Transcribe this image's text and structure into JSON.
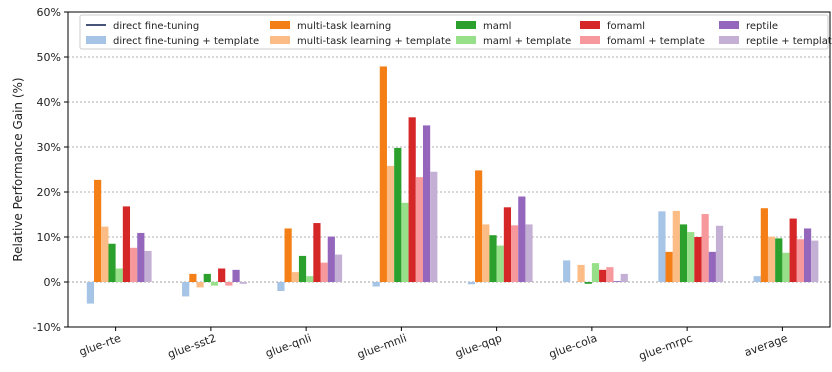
{
  "chart_data": {
    "type": "bar",
    "ylabel": "Relative Performance Gain (%)",
    "xlabel": "",
    "ylim": [
      -10,
      60
    ],
    "yticks": [
      -10,
      0,
      10,
      20,
      30,
      40,
      50,
      60
    ],
    "ytick_labels": [
      "-10%",
      "0%",
      "10%",
      "20%",
      "30%",
      "40%",
      "50%",
      "60%"
    ],
    "grid": "horizontal dashed",
    "legend_position": "top",
    "categories": [
      "glue-rte",
      "glue-sst2",
      "glue-qnli",
      "glue-mnli",
      "glue-qqp",
      "glue-cola",
      "glue-mrpc",
      "average"
    ],
    "series": [
      {
        "name": "direct fine-tuning",
        "color": "#0b1a4e",
        "values": [
          0,
          0,
          0,
          0,
          0,
          0,
          0,
          0
        ]
      },
      {
        "name": "direct fine-tuning + template",
        "color": "#a6c4e6",
        "values": [
          -4.8,
          -3.2,
          -2.0,
          -1.0,
          -0.5,
          4.8,
          15.7,
          1.3
        ]
      },
      {
        "name": "multi-task learning",
        "color": "#f57f17",
        "values": [
          22.7,
          1.8,
          11.9,
          47.9,
          24.8,
          0,
          6.7,
          16.4
        ]
      },
      {
        "name": "multi-task learning + template",
        "color": "#fbbd85",
        "values": [
          12.3,
          -1.2,
          2.2,
          25.8,
          12.8,
          3.8,
          15.8,
          10.1
        ]
      },
      {
        "name": "maml",
        "color": "#2ca02c",
        "values": [
          8.5,
          1.8,
          5.8,
          29.8,
          10.4,
          -0.4,
          12.8,
          9.7
        ]
      },
      {
        "name": "maml + template",
        "color": "#98df8a",
        "values": [
          3.0,
          -0.8,
          1.3,
          17.6,
          8.1,
          4.2,
          11.1,
          6.5
        ]
      },
      {
        "name": "fomaml",
        "color": "#d62728",
        "values": [
          16.8,
          3.0,
          13.1,
          36.6,
          16.6,
          2.7,
          10.0,
          14.1
        ]
      },
      {
        "name": "fomaml + template",
        "color": "#f7999c",
        "values": [
          7.6,
          -0.8,
          4.3,
          23.3,
          12.6,
          3.3,
          15.1,
          9.5
        ]
      },
      {
        "name": "reptile",
        "color": "#9467bd",
        "values": [
          10.9,
          2.7,
          10.1,
          34.8,
          19.0,
          0.2,
          6.7,
          11.9
        ]
      },
      {
        "name": "reptile + template",
        "color": "#c5b0d5",
        "values": [
          6.9,
          -0.4,
          6.1,
          24.5,
          12.8,
          1.8,
          12.5,
          9.2
        ]
      }
    ]
  }
}
